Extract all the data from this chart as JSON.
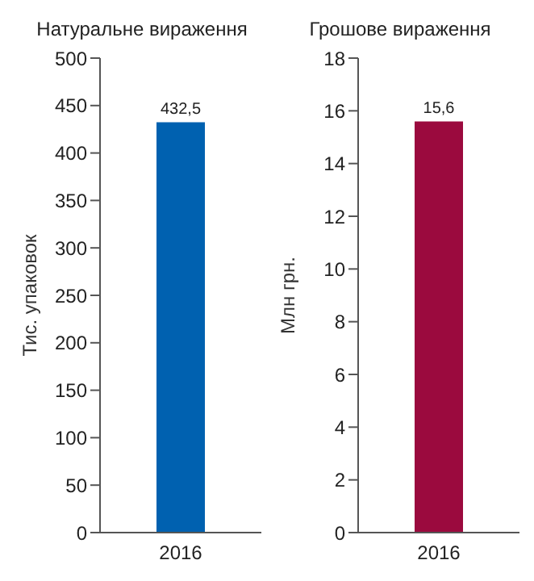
{
  "chart_data": [
    {
      "type": "bar",
      "title": "Натуральне вираження",
      "ylabel": "Тис. упаковок",
      "categories": [
        "2016"
      ],
      "values": [
        432.5
      ],
      "value_labels": [
        "432,5"
      ],
      "color": "#0061b0",
      "ylim": [
        0,
        500
      ],
      "yticks": [
        0,
        50,
        100,
        150,
        200,
        250,
        300,
        350,
        400,
        450,
        500
      ],
      "grid": false,
      "legend": false
    },
    {
      "type": "bar",
      "title": "Грошове вираження",
      "ylabel": "Млн грн.",
      "categories": [
        "2016"
      ],
      "values": [
        15.6
      ],
      "value_labels": [
        "15,6"
      ],
      "color": "#9b0a3e",
      "ylim": [
        0,
        18
      ],
      "yticks": [
        0,
        2,
        4,
        6,
        8,
        10,
        12,
        14,
        16,
        18
      ],
      "grid": false,
      "legend": false
    }
  ]
}
